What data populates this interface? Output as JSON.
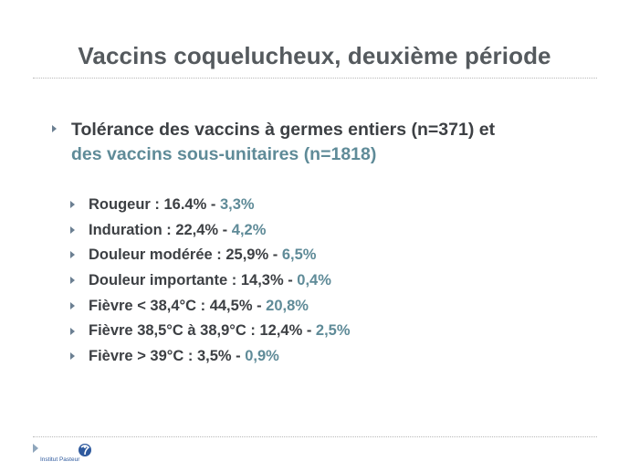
{
  "slide": {
    "title": "Vaccins coquelucheux, deuxième période",
    "main_point": {
      "line1": "Tolérance des vaccins à germes entiers (n=371) et",
      "line2": "des vaccins sous-unitaires (n=1818)"
    },
    "items": [
      {
        "label": "Rougeur : 16.4% - ",
        "value": "3,3%"
      },
      {
        "label": "Induration : 22,4% - ",
        "value": "4,2%"
      },
      {
        "label": "Douleur modérée : 25,9% - ",
        "value": "6,5%"
      },
      {
        "label": "Douleur importante : 14,3% - ",
        "value": "0,4%"
      },
      {
        "label": "Fièvre < 38,4°C : 44,5% - ",
        "value": "20,8%"
      },
      {
        "label": "Fièvre 38,5°C à 38,9°C : 12,4% - ",
        "value": "2,5%"
      },
      {
        "label": "Fièvre > 39°C : 3,5% - ",
        "value": "0,9%"
      }
    ],
    "footer": {
      "logo_text": "Institut Pasteur"
    }
  },
  "colors": {
    "title": "#555a5e",
    "text_dark": "#3d4044",
    "text_teal": "#5f8b98",
    "bullet": "#6b7f92",
    "logo_blue": "#2f5a9e"
  }
}
